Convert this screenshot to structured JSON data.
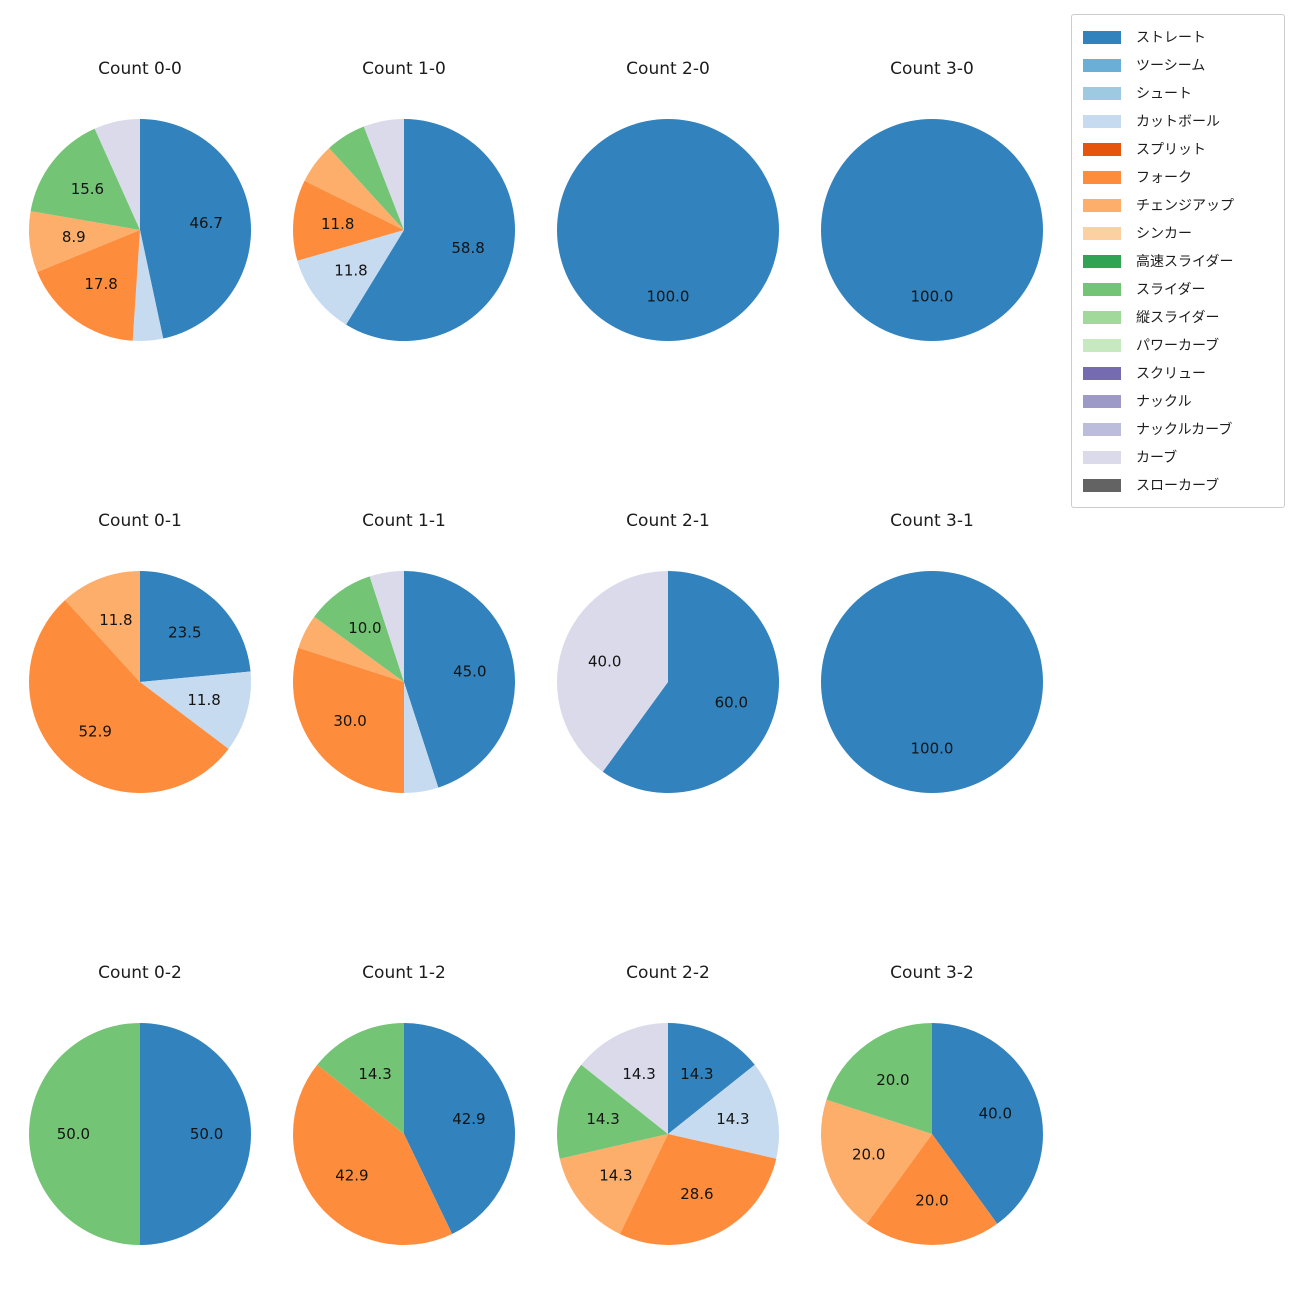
{
  "figure": {
    "background": "#ffffff"
  },
  "legend": {
    "position": "upper right",
    "items": [
      {
        "label": "ストレート",
        "color": "#3182bd"
      },
      {
        "label": "ツーシーム",
        "color": "#6baed6"
      },
      {
        "label": "シュート",
        "color": "#9ecae1"
      },
      {
        "label": "カットボール",
        "color": "#c6dbef"
      },
      {
        "label": "スプリット",
        "color": "#e6550d"
      },
      {
        "label": "フォーク",
        "color": "#fd8d3c"
      },
      {
        "label": "チェンジアップ",
        "color": "#fdae6b"
      },
      {
        "label": "シンカー",
        "color": "#fdd0a2"
      },
      {
        "label": "高速スライダー",
        "color": "#31a354"
      },
      {
        "label": "スライダー",
        "color": "#74c476"
      },
      {
        "label": "縦スライダー",
        "color": "#a1d99b"
      },
      {
        "label": "パワーカーブ",
        "color": "#c7e9c0"
      },
      {
        "label": "スクリュー",
        "color": "#756bb1"
      },
      {
        "label": "ナックル",
        "color": "#9e9ac8"
      },
      {
        "label": "ナックルカーブ",
        "color": "#bcbddc"
      },
      {
        "label": "カーブ",
        "color": "#dadaeb"
      },
      {
        "label": "スローカーブ",
        "color": "#636363"
      }
    ]
  },
  "chart_data": [
    {
      "type": "pie",
      "title": "Count 0-0",
      "unit": "%",
      "start_angle": "top",
      "direction": "clockwise",
      "labels": [
        "ストレート",
        "カットボール",
        "フォーク",
        "チェンジアップ",
        "スライダー",
        "カーブ"
      ],
      "values": [
        46.7,
        4.4,
        17.8,
        8.9,
        15.6,
        6.7
      ],
      "pct_labels": [
        "46.7",
        "",
        "17.8",
        "8.9",
        "15.6",
        ""
      ]
    },
    {
      "type": "pie",
      "title": "Count 1-0",
      "unit": "%",
      "start_angle": "top",
      "direction": "clockwise",
      "labels": [
        "ストレート",
        "カットボール",
        "フォーク",
        "チェンジアップ",
        "スライダー",
        "カーブ"
      ],
      "values": [
        58.8,
        11.8,
        11.8,
        5.9,
        5.9,
        5.9
      ],
      "pct_labels": [
        "58.8",
        "11.8",
        "11.8",
        "",
        "",
        ""
      ]
    },
    {
      "type": "pie",
      "title": "Count 2-0",
      "unit": "%",
      "start_angle": "top",
      "direction": "clockwise",
      "labels": [
        "ストレート"
      ],
      "values": [
        100.0
      ],
      "pct_labels": [
        "100.0"
      ]
    },
    {
      "type": "pie",
      "title": "Count 3-0",
      "unit": "%",
      "start_angle": "top",
      "direction": "clockwise",
      "labels": [
        "ストレート"
      ],
      "values": [
        100.0
      ],
      "pct_labels": [
        "100.0"
      ]
    },
    {
      "type": "pie",
      "title": "Count 0-1",
      "unit": "%",
      "start_angle": "top",
      "direction": "clockwise",
      "labels": [
        "ストレート",
        "カットボール",
        "フォーク",
        "チェンジアップ"
      ],
      "values": [
        23.5,
        11.8,
        52.9,
        11.8
      ],
      "pct_labels": [
        "23.5",
        "11.8",
        "52.9",
        "11.8"
      ]
    },
    {
      "type": "pie",
      "title": "Count 1-1",
      "unit": "%",
      "start_angle": "top",
      "direction": "clockwise",
      "labels": [
        "ストレート",
        "カットボール",
        "フォーク",
        "チェンジアップ",
        "スライダー",
        "カーブ"
      ],
      "values": [
        45.0,
        5.0,
        30.0,
        5.0,
        10.0,
        5.0
      ],
      "pct_labels": [
        "45.0",
        "",
        "30.0",
        "",
        "10.0",
        ""
      ]
    },
    {
      "type": "pie",
      "title": "Count 2-1",
      "unit": "%",
      "start_angle": "top",
      "direction": "clockwise",
      "labels": [
        "ストレート",
        "カーブ"
      ],
      "values": [
        60.0,
        40.0
      ],
      "pct_labels": [
        "60.0",
        "40.0"
      ]
    },
    {
      "type": "pie",
      "title": "Count 3-1",
      "unit": "%",
      "start_angle": "top",
      "direction": "clockwise",
      "labels": [
        "ストレート"
      ],
      "values": [
        100.0
      ],
      "pct_labels": [
        "100.0"
      ]
    },
    {
      "type": "pie",
      "title": "Count 0-2",
      "unit": "%",
      "start_angle": "top",
      "direction": "clockwise",
      "labels": [
        "ストレート",
        "スライダー"
      ],
      "values": [
        50.0,
        50.0
      ],
      "pct_labels": [
        "50.0",
        "50.0"
      ]
    },
    {
      "type": "pie",
      "title": "Count 1-2",
      "unit": "%",
      "start_angle": "top",
      "direction": "clockwise",
      "labels": [
        "ストレート",
        "フォーク",
        "スライダー"
      ],
      "values": [
        42.9,
        42.9,
        14.3
      ],
      "pct_labels": [
        "42.9",
        "42.9",
        "14.3"
      ]
    },
    {
      "type": "pie",
      "title": "Count 2-2",
      "unit": "%",
      "start_angle": "top",
      "direction": "clockwise",
      "labels": [
        "ストレート",
        "カットボール",
        "フォーク",
        "チェンジアップ",
        "スライダー",
        "カーブ"
      ],
      "values": [
        14.3,
        14.3,
        28.6,
        14.3,
        14.3,
        14.3
      ],
      "pct_labels": [
        "14.3",
        "14.3",
        "28.6",
        "14.3",
        "14.3",
        "14.3"
      ]
    },
    {
      "type": "pie",
      "title": "Count 3-2",
      "unit": "%",
      "start_angle": "top",
      "direction": "clockwise",
      "labels": [
        "ストレート",
        "フォーク",
        "チェンジアップ",
        "スライダー"
      ],
      "values": [
        40.0,
        20.0,
        20.0,
        20.0
      ],
      "pct_labels": [
        "40.0",
        "20.0",
        "20.0",
        "20.0"
      ]
    }
  ]
}
